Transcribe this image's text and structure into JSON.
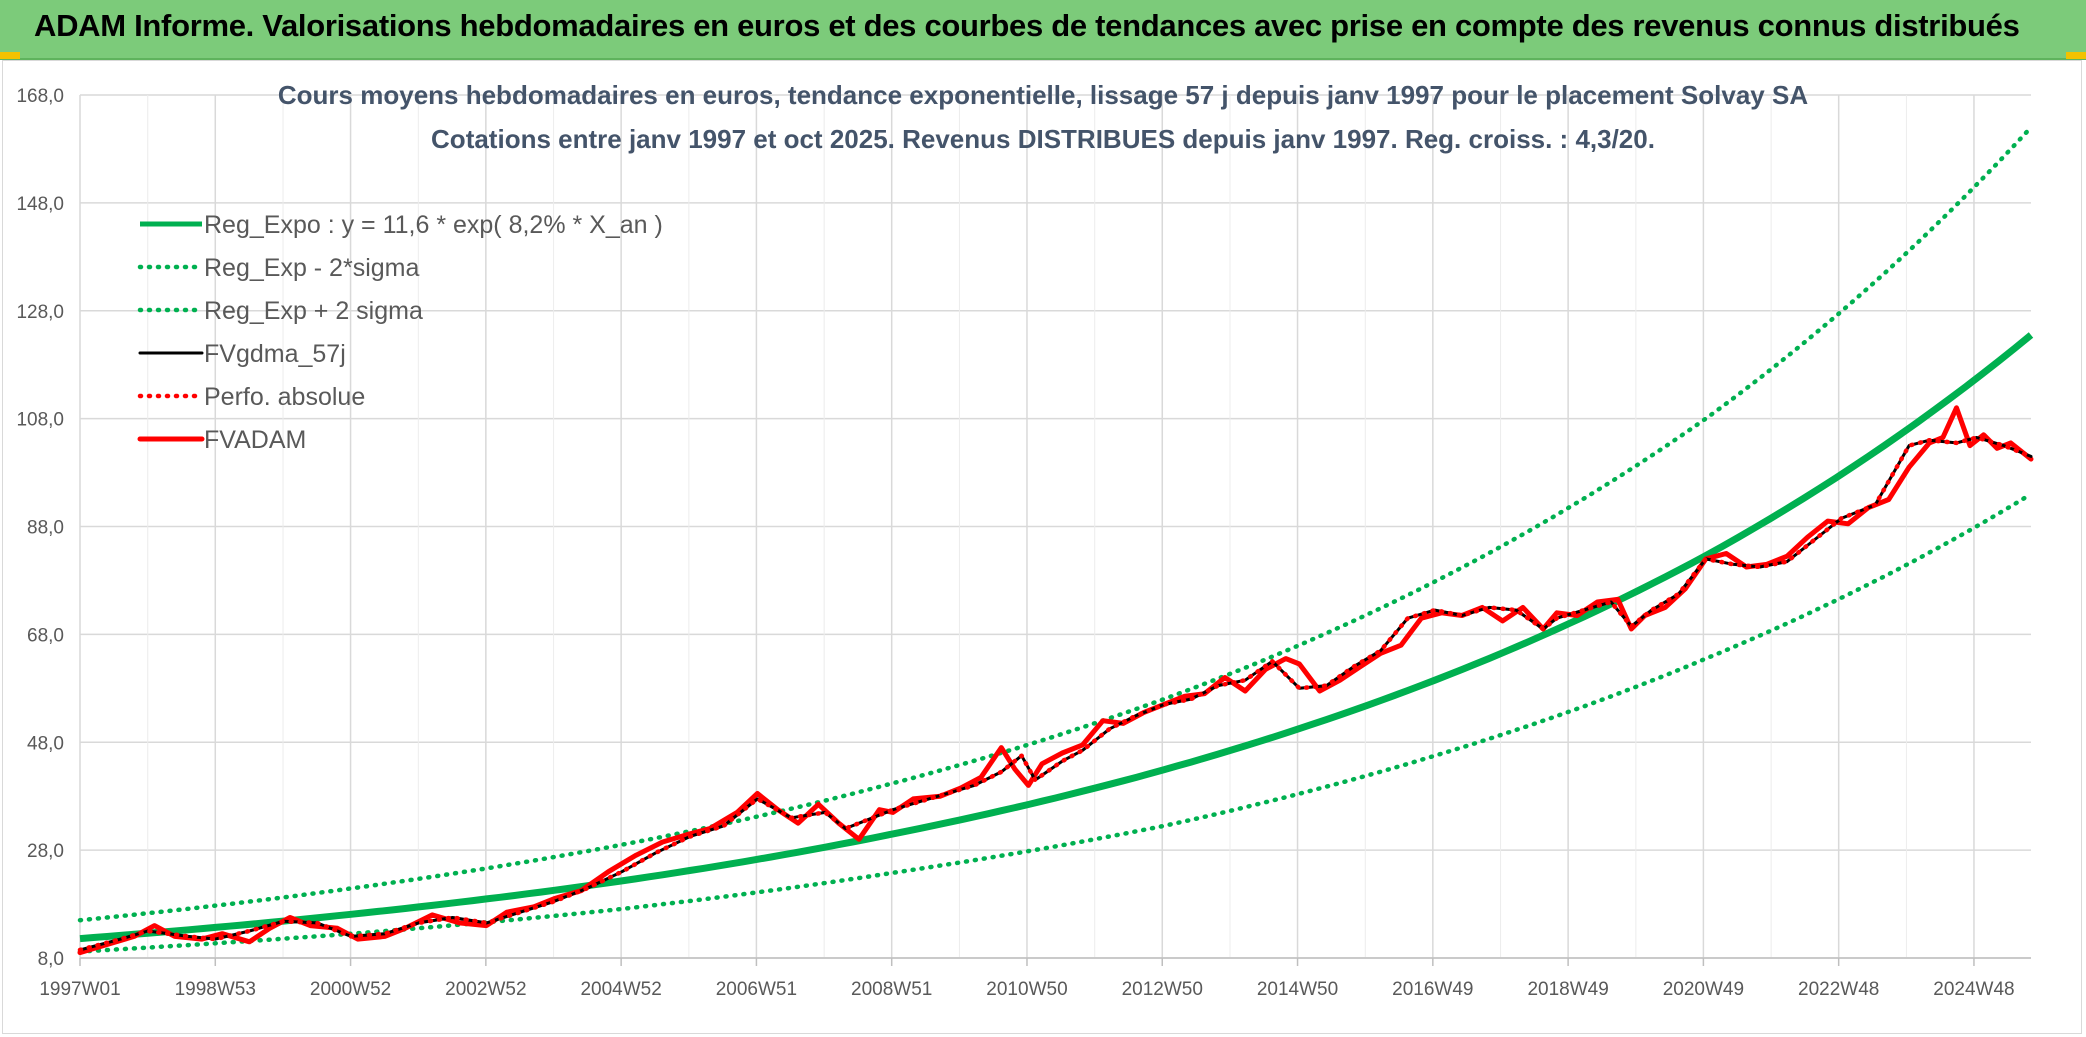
{
  "banner": {
    "title": "ADAM Informe. Valorisations hebdomadaires en euros et des courbes de tendances avec prise en compte des revenus connus distribués",
    "accent_color": "#7ccb7a",
    "corner_color": "#f2c200"
  },
  "chart_data": {
    "type": "line",
    "title_line1": "Cours moyens hebdomadaires en euros, tendance exponentielle, lissage 57 j depuis janv 1997 pour le placement Solvay SA",
    "title_line2": "Cotations entre janv 1997 et oct 2025. Revenus DISTRIBUES depuis janv 1997. Reg. croiss. : 4,3/20.",
    "xlabel": "",
    "ylabel": "",
    "ylim": [
      8,
      168
    ],
    "y_ticks": [
      "8,0",
      "28,0",
      "48,0",
      "68,0",
      "88,0",
      "108,0",
      "128,0",
      "148,0",
      "168,0"
    ],
    "x_ticks": [
      "1997W01",
      "1998W53",
      "2000W52",
      "2002W52",
      "2004W52",
      "2006W51",
      "2008W51",
      "2010W50",
      "2012W50",
      "2014W50",
      "2016W49",
      "2018W49",
      "2020W49",
      "2022W48",
      "2024W48"
    ],
    "x_range": [
      "1997W01",
      "2025W43"
    ],
    "grid": true,
    "legend_position": "top-left",
    "series": [
      {
        "name": "Reg_Expo : y = 11,6 * exp( 8,2% *  X_an )",
        "color": "#00b050",
        "style": "solid",
        "x": [
          1997.0,
          2001.0,
          2005.0,
          2009.0,
          2013.0,
          2017.0,
          2021.0,
          2025.8
        ],
        "values": [
          11.6,
          16.1,
          22.3,
          31.0,
          42.9,
          59.5,
          82.6,
          123.5
        ]
      },
      {
        "name": "Reg_Exp - 2*sigma",
        "color": "#00b050",
        "style": "dotted",
        "x": [
          1997.0,
          2001.0,
          2005.0,
          2009.0,
          2013.0,
          2017.0,
          2021.0,
          2025.8
        ],
        "values": [
          9.2,
          12.5,
          17.1,
          23.8,
          32.5,
          45.5,
          63.5,
          94.0
        ]
      },
      {
        "name": "Reg_Exp + 2 sigma",
        "color": "#00b050",
        "style": "dotted",
        "x": [
          1997.0,
          2001.0,
          2005.0,
          2009.0,
          2013.0,
          2017.0,
          2021.0,
          2025.8
        ],
        "values": [
          15.0,
          20.9,
          29.0,
          40.4,
          56.0,
          77.8,
          108.0,
          162.0
        ]
      },
      {
        "name": "FVgdma_57j",
        "color": "#000000",
        "style": "solid",
        "x": [
          1997.0,
          1997.6,
          1998.0,
          1998.6,
          1999.0,
          1999.5,
          2000.0,
          2000.5,
          2001.0,
          2001.5,
          2002.0,
          2002.5,
          2003.0,
          2003.5,
          2004.0,
          2004.5,
          2005.0,
          2005.5,
          2006.0,
          2006.5,
          2007.0,
          2007.5,
          2008.0,
          2008.3,
          2008.7,
          2009.0,
          2009.4,
          2009.8,
          2010.2,
          2010.6,
          2010.9,
          2011.1,
          2011.5,
          2011.8,
          2012.2,
          2012.6,
          2013.0,
          2013.4,
          2013.8,
          2014.2,
          2014.6,
          2015.0,
          2015.4,
          2015.8,
          2016.2,
          2016.6,
          2017.0,
          2017.4,
          2017.8,
          2018.2,
          2018.6,
          2018.8,
          2019.2,
          2019.6,
          2019.9,
          2020.2,
          2020.6,
          2021.0,
          2021.4,
          2021.8,
          2022.2,
          2022.6,
          2023.0,
          2023.5,
          2024.0,
          2024.3,
          2024.7,
          2025.0,
          2025.4,
          2025.8
        ],
        "values": [
          9.5,
          11.5,
          13.0,
          12.0,
          11.5,
          13.0,
          14.8,
          14.5,
          12.0,
          12.5,
          14.5,
          15.5,
          14.5,
          16.5,
          18.5,
          21.0,
          24.0,
          27.5,
          30.5,
          32.5,
          37.5,
          34.0,
          35.0,
          32.0,
          34.0,
          35.5,
          37.0,
          38.5,
          40.0,
          42.5,
          45.5,
          41.0,
          44.5,
          46.5,
          50.5,
          53.0,
          55.0,
          56.0,
          58.5,
          59.5,
          63.0,
          58.0,
          58.5,
          62.0,
          65.0,
          71.0,
          72.5,
          71.5,
          73.0,
          72.5,
          69.0,
          71.0,
          72.5,
          74.0,
          69.5,
          72.5,
          75.5,
          82.0,
          81.0,
          80.5,
          81.5,
          85.5,
          89.5,
          92.0,
          103.0,
          104.0,
          103.5,
          104.5,
          103.0,
          101.0
        ]
      },
      {
        "name": "Perfo. absolue",
        "color": "#ff0000",
        "style": "dotted",
        "x": [
          1997.0,
          1997.6,
          1998.0,
          1998.6,
          1999.0,
          1999.5,
          2000.0,
          2000.5,
          2001.0,
          2001.5,
          2002.0,
          2002.5,
          2003.0,
          2003.5,
          2004.0,
          2004.5,
          2005.0,
          2005.5,
          2006.0,
          2006.5,
          2007.0,
          2007.5,
          2008.0,
          2008.3,
          2008.7,
          2009.0,
          2009.4,
          2009.8,
          2010.2,
          2010.6,
          2010.9,
          2011.1,
          2011.5,
          2011.8,
          2012.2,
          2012.6,
          2013.0,
          2013.4,
          2013.8,
          2014.2,
          2014.6,
          2015.0,
          2015.4,
          2015.8,
          2016.2,
          2016.6,
          2017.0,
          2017.4,
          2017.8,
          2018.2,
          2018.6,
          2018.8,
          2019.2,
          2019.6,
          2019.9,
          2020.2,
          2020.6,
          2021.0,
          2021.4,
          2021.8,
          2022.2,
          2022.6,
          2023.0,
          2023.5,
          2024.0,
          2024.3,
          2024.7,
          2025.0,
          2025.4,
          2025.8
        ],
        "values": [
          9.5,
          11.5,
          13.0,
          12.0,
          11.5,
          13.0,
          14.8,
          14.5,
          12.0,
          12.5,
          14.5,
          15.5,
          14.5,
          16.5,
          18.5,
          21.0,
          24.0,
          27.5,
          30.5,
          32.5,
          37.5,
          34.0,
          35.0,
          32.0,
          34.0,
          35.5,
          37.0,
          38.5,
          40.0,
          42.5,
          45.5,
          41.0,
          44.5,
          46.5,
          50.5,
          53.0,
          55.0,
          56.0,
          58.5,
          59.5,
          63.0,
          58.0,
          58.5,
          62.0,
          65.0,
          71.0,
          72.5,
          71.5,
          73.0,
          72.5,
          69.0,
          71.0,
          72.5,
          74.0,
          69.5,
          72.5,
          75.5,
          82.0,
          81.0,
          80.5,
          81.5,
          85.5,
          89.5,
          92.0,
          103.0,
          104.0,
          103.5,
          104.5,
          103.0,
          101.0
        ]
      },
      {
        "name": "FVADAM",
        "color": "#ff0000",
        "style": "solid",
        "x": [
          1997.0,
          1997.4,
          1997.8,
          1998.1,
          1998.4,
          1998.8,
          1999.1,
          1999.5,
          1999.8,
          2000.1,
          2000.4,
          2000.8,
          2001.1,
          2001.5,
          2001.8,
          2002.2,
          2002.6,
          2003.0,
          2003.3,
          2003.7,
          2004.0,
          2004.4,
          2004.8,
          2005.2,
          2005.6,
          2006.0,
          2006.3,
          2006.7,
          2007.0,
          2007.3,
          2007.6,
          2007.9,
          2008.2,
          2008.5,
          2008.8,
          2009.0,
          2009.3,
          2009.7,
          2010.0,
          2010.3,
          2010.6,
          2010.8,
          2011.0,
          2011.2,
          2011.5,
          2011.8,
          2012.1,
          2012.4,
          2012.7,
          2013.0,
          2013.3,
          2013.6,
          2013.9,
          2014.2,
          2014.5,
          2014.8,
          2015.0,
          2015.3,
          2015.6,
          2015.9,
          2016.2,
          2016.5,
          2016.8,
          2017.1,
          2017.4,
          2017.7,
          2018.0,
          2018.3,
          2018.6,
          2018.8,
          2019.1,
          2019.4,
          2019.7,
          2019.9,
          2020.1,
          2020.4,
          2020.7,
          2021.0,
          2021.3,
          2021.6,
          2021.9,
          2022.2,
          2022.5,
          2022.8,
          2023.1,
          2023.4,
          2023.7,
          2024.0,
          2024.3,
          2024.5,
          2024.7,
          2024.9,
          2025.1,
          2025.3,
          2025.5,
          2025.8
        ],
        "values": [
          9.0,
          10.5,
          12.0,
          14.0,
          12.0,
          11.5,
          12.5,
          11.0,
          13.5,
          15.5,
          14.0,
          13.5,
          11.5,
          12.0,
          13.5,
          16.0,
          14.5,
          14.0,
          16.5,
          17.5,
          19.0,
          20.5,
          24.0,
          27.0,
          29.5,
          31.0,
          32.0,
          35.0,
          38.5,
          35.5,
          33.0,
          36.5,
          33.0,
          30.0,
          35.5,
          35.0,
          37.5,
          38.0,
          39.5,
          41.5,
          47.0,
          43.0,
          40.0,
          44.0,
          46.0,
          47.5,
          52.0,
          51.5,
          53.5,
          55.0,
          56.5,
          57.0,
          60.0,
          57.5,
          61.5,
          63.5,
          62.5,
          57.5,
          59.5,
          62.0,
          64.5,
          66.0,
          71.0,
          72.0,
          71.5,
          73.0,
          70.5,
          73.0,
          69.0,
          72.0,
          71.5,
          74.0,
          74.5,
          69.0,
          71.5,
          73.0,
          76.5,
          82.0,
          83.0,
          80.5,
          81.0,
          82.5,
          86.0,
          89.0,
          88.5,
          91.5,
          93.0,
          99.0,
          103.5,
          104.5,
          110.0,
          103.0,
          105.0,
          102.5,
          103.5,
          100.5
        ]
      }
    ]
  }
}
